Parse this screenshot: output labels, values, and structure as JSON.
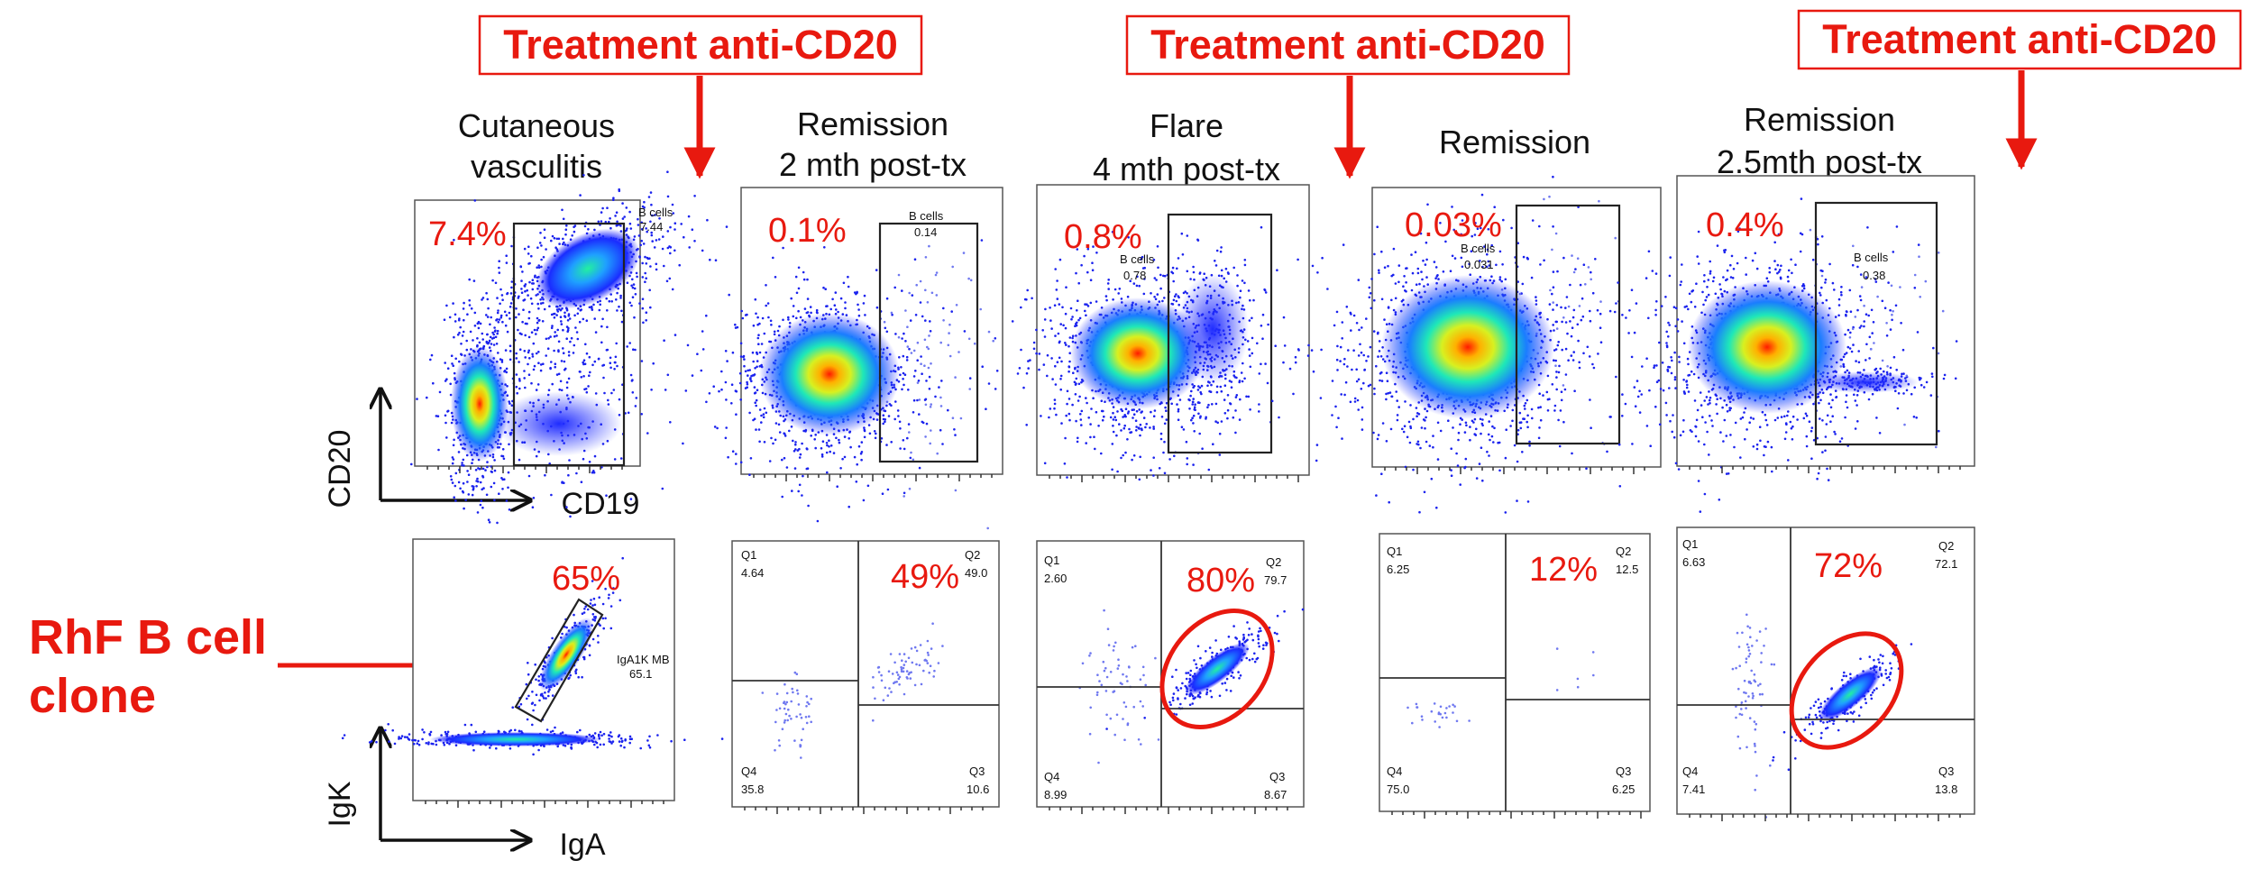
{
  "treatments": [
    {
      "label": "Treatment anti-CD20"
    },
    {
      "label": "Treatment anti-CD20"
    },
    {
      "label": "Treatment anti-CD20"
    }
  ],
  "stages": [
    {
      "line1": "Cutaneous",
      "line2": "vasculitis"
    },
    {
      "line1": "Remission",
      "line2": "2 mth post-tx"
    },
    {
      "line1": "Flare",
      "line2": "4 mth post-tx"
    },
    {
      "line1": "Remission",
      "line2": ""
    },
    {
      "line1": "Remission",
      "line2": "2.5mth post-tx"
    }
  ],
  "top_axes": {
    "y": "CD20",
    "x": "CD19"
  },
  "bottom_axes": {
    "y": "IgK",
    "x": "IgA"
  },
  "clone_label": {
    "line1": "RhF B cell",
    "line2": "clone"
  },
  "top_panels": [
    {
      "pct": "7.4%",
      "gate_name": "B cells",
      "gate_value": "7.44"
    },
    {
      "pct": "0.1%",
      "gate_name": "B cells",
      "gate_value": "0.14"
    },
    {
      "pct": "0.8%",
      "gate_name": "B cells",
      "gate_value": "0.78"
    },
    {
      "pct": "0.03%",
      "gate_name": "B cells",
      "gate_value": "0.031"
    },
    {
      "pct": "0.4%",
      "gate_name": "B cells",
      "gate_value": "0.38"
    }
  ],
  "first_bottom_panel": {
    "pct": "65%",
    "gate_name": "IgA1K MB",
    "gate_value": "65.1"
  },
  "quad_panels": [
    {
      "pct": "49%",
      "q1_name": "Q1",
      "q1": "4.64",
      "q2_name": "Q2",
      "q2": "49.0",
      "q3_name": "Q3",
      "q3": "10.6",
      "q4_name": "Q4",
      "q4": "35.8"
    },
    {
      "pct": "80%",
      "q1_name": "Q1",
      "q1": "2.60",
      "q2_name": "Q2",
      "q2": "79.7",
      "q3_name": "Q3",
      "q3": "8.67",
      "q4_name": "Q4",
      "q4": "8.99"
    },
    {
      "pct": "12%",
      "q1_name": "Q1",
      "q1": "6.25",
      "q2_name": "Q2",
      "q2": "12.5",
      "q3_name": "Q3",
      "q3": "6.25",
      "q4_name": "Q4",
      "q4": "75.0"
    },
    {
      "pct": "72%",
      "q1_name": "Q1",
      "q1": "6.63",
      "q2_name": "Q2",
      "q2": "72.1",
      "q3_name": "Q3",
      "q3": "13.8",
      "q4_name": "Q4",
      "q4": "7.41"
    }
  ],
  "colors": {
    "accent": "#e8190f",
    "density_low": "#1010ff",
    "density_mid": "#22e8c8",
    "density_high": "#ff2200"
  }
}
